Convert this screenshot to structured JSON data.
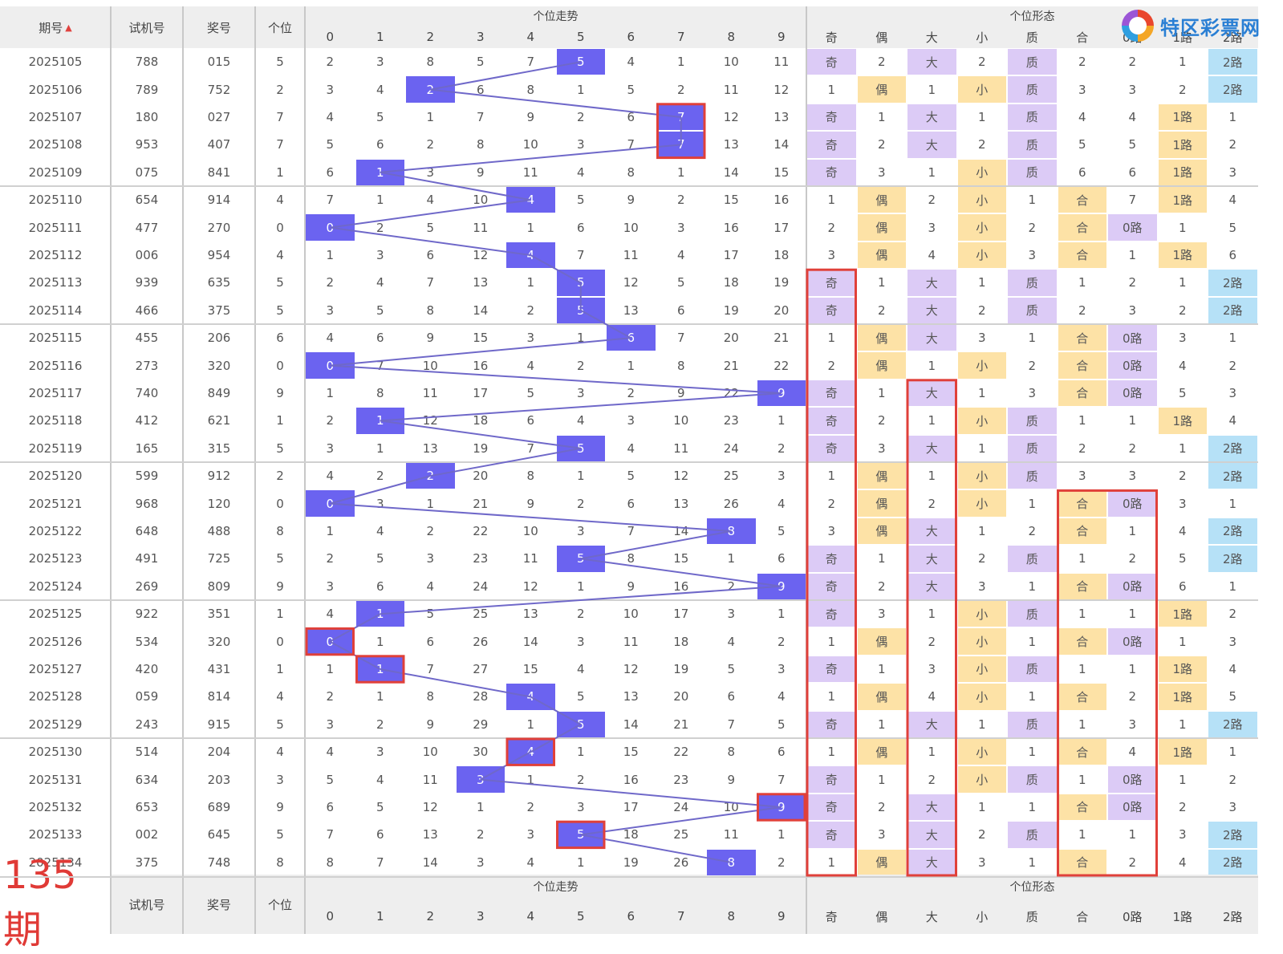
{
  "logo": {
    "text": "特区彩票网"
  },
  "header": {
    "issue": "期号",
    "trial": "试机号",
    "prize": "奖号",
    "digit": "个位",
    "trend_title": "个位走势",
    "form_title": "个位形态",
    "digits": [
      "0",
      "1",
      "2",
      "3",
      "4",
      "5",
      "6",
      "7",
      "8",
      "9"
    ],
    "forms": [
      "奇",
      "偶",
      "大",
      "小",
      "质",
      "合",
      "0路",
      "1路",
      "2路"
    ]
  },
  "footer": {
    "issue_big": "135期",
    "trial": "试机号",
    "prize": "奖号",
    "digit": "个位",
    "trend_title": "个位走势",
    "form_title": "个位形态",
    "digits": [
      "0",
      "1",
      "2",
      "3",
      "4",
      "5",
      "6",
      "7",
      "8",
      "9"
    ],
    "forms": [
      "奇",
      "偶",
      "大",
      "小",
      "质",
      "合",
      "0路",
      "1路",
      "2路"
    ]
  },
  "colors": {
    "hit": "#6b63f0",
    "odd": "#dccbf6",
    "even": "#fde2a6",
    "big": "#dccbf6",
    "small": "#fde2a6",
    "prime": "#dccbf6",
    "composite": "#fde2a6",
    "route0": "#dccbf6",
    "route1": "#fde2a6",
    "route2": "#b6e1f7",
    "highlight": "#e0403a"
  },
  "rows": [
    {
      "issue": "2025105",
      "trial": "788",
      "prize": "015",
      "digit": "5",
      "trend": [
        "2",
        "3",
        "8",
        "5",
        "7",
        "5",
        "4",
        "1",
        "10",
        "11"
      ],
      "forms": [
        "奇",
        "2",
        "大",
        "2",
        "质",
        "2",
        "2",
        "1",
        "2路"
      ]
    },
    {
      "issue": "2025106",
      "trial": "789",
      "prize": "752",
      "digit": "2",
      "trend": [
        "3",
        "4",
        "2",
        "6",
        "8",
        "1",
        "5",
        "2",
        "11",
        "12"
      ],
      "forms": [
        "1",
        "偶",
        "1",
        "小",
        "质",
        "3",
        "3",
        "2",
        "2路"
      ]
    },
    {
      "issue": "2025107",
      "trial": "180",
      "prize": "027",
      "digit": "7",
      "trend": [
        "4",
        "5",
        "1",
        "7",
        "9",
        "2",
        "6",
        "7",
        "12",
        "13"
      ],
      "forms": [
        "奇",
        "1",
        "大",
        "1",
        "质",
        "4",
        "4",
        "1路",
        "1"
      ]
    },
    {
      "issue": "2025108",
      "trial": "953",
      "prize": "407",
      "digit": "7",
      "trend": [
        "5",
        "6",
        "2",
        "8",
        "10",
        "3",
        "7",
        "7",
        "13",
        "14"
      ],
      "forms": [
        "奇",
        "2",
        "大",
        "2",
        "质",
        "5",
        "5",
        "1路",
        "2"
      ]
    },
    {
      "issue": "2025109",
      "trial": "075",
      "prize": "841",
      "digit": "1",
      "trend": [
        "6",
        "1",
        "3",
        "9",
        "11",
        "4",
        "8",
        "1",
        "14",
        "15"
      ],
      "forms": [
        "奇",
        "3",
        "1",
        "小",
        "质",
        "6",
        "6",
        "1路",
        "3"
      ]
    },
    {
      "issue": "2025110",
      "trial": "654",
      "prize": "914",
      "digit": "4",
      "trend": [
        "7",
        "1",
        "4",
        "10",
        "4",
        "5",
        "9",
        "2",
        "15",
        "16"
      ],
      "forms": [
        "1",
        "偶",
        "2",
        "小",
        "1",
        "合",
        "7",
        "1路",
        "4"
      ]
    },
    {
      "issue": "2025111",
      "trial": "477",
      "prize": "270",
      "digit": "0",
      "trend": [
        "0",
        "2",
        "5",
        "11",
        "1",
        "6",
        "10",
        "3",
        "16",
        "17"
      ],
      "forms": [
        "2",
        "偶",
        "3",
        "小",
        "2",
        "合",
        "0路",
        "1",
        "5"
      ]
    },
    {
      "issue": "2025112",
      "trial": "006",
      "prize": "954",
      "digit": "4",
      "trend": [
        "1",
        "3",
        "6",
        "12",
        "4",
        "7",
        "11",
        "4",
        "17",
        "18"
      ],
      "forms": [
        "3",
        "偶",
        "4",
        "小",
        "3",
        "合",
        "1",
        "1路",
        "6"
      ]
    },
    {
      "issue": "2025113",
      "trial": "939",
      "prize": "635",
      "digit": "5",
      "trend": [
        "2",
        "4",
        "7",
        "13",
        "1",
        "5",
        "12",
        "5",
        "18",
        "19"
      ],
      "forms": [
        "奇",
        "1",
        "大",
        "1",
        "质",
        "1",
        "2",
        "1",
        "2路"
      ]
    },
    {
      "issue": "2025114",
      "trial": "466",
      "prize": "375",
      "digit": "5",
      "trend": [
        "3",
        "5",
        "8",
        "14",
        "2",
        "5",
        "13",
        "6",
        "19",
        "20"
      ],
      "forms": [
        "奇",
        "2",
        "大",
        "2",
        "质",
        "2",
        "3",
        "2",
        "2路"
      ]
    },
    {
      "issue": "2025115",
      "trial": "455",
      "prize": "206",
      "digit": "6",
      "trend": [
        "4",
        "6",
        "9",
        "15",
        "3",
        "1",
        "6",
        "7",
        "20",
        "21"
      ],
      "forms": [
        "1",
        "偶",
        "大",
        "3",
        "1",
        "合",
        "0路",
        "3",
        "1"
      ]
    },
    {
      "issue": "2025116",
      "trial": "273",
      "prize": "320",
      "digit": "0",
      "trend": [
        "0",
        "7",
        "10",
        "16",
        "4",
        "2",
        "1",
        "8",
        "21",
        "22"
      ],
      "forms": [
        "2",
        "偶",
        "1",
        "小",
        "2",
        "合",
        "0路",
        "4",
        "2"
      ]
    },
    {
      "issue": "2025117",
      "trial": "740",
      "prize": "849",
      "digit": "9",
      "trend": [
        "1",
        "8",
        "11",
        "17",
        "5",
        "3",
        "2",
        "9",
        "22",
        "9"
      ],
      "forms": [
        "奇",
        "1",
        "大",
        "1",
        "3",
        "合",
        "0路",
        "5",
        "3"
      ]
    },
    {
      "issue": "2025118",
      "trial": "412",
      "prize": "621",
      "digit": "1",
      "trend": [
        "2",
        "1",
        "12",
        "18",
        "6",
        "4",
        "3",
        "10",
        "23",
        "1"
      ],
      "forms": [
        "奇",
        "2",
        "1",
        "小",
        "质",
        "1",
        "1",
        "1路",
        "4"
      ]
    },
    {
      "issue": "2025119",
      "trial": "165",
      "prize": "315",
      "digit": "5",
      "trend": [
        "3",
        "1",
        "13",
        "19",
        "7",
        "5",
        "4",
        "11",
        "24",
        "2"
      ],
      "forms": [
        "奇",
        "3",
        "大",
        "1",
        "质",
        "2",
        "2",
        "1",
        "2路"
      ]
    },
    {
      "issue": "2025120",
      "trial": "599",
      "prize": "912",
      "digit": "2",
      "trend": [
        "4",
        "2",
        "2",
        "20",
        "8",
        "1",
        "5",
        "12",
        "25",
        "3"
      ],
      "forms": [
        "1",
        "偶",
        "1",
        "小",
        "质",
        "3",
        "3",
        "2",
        "2路"
      ]
    },
    {
      "issue": "2025121",
      "trial": "968",
      "prize": "120",
      "digit": "0",
      "trend": [
        "0",
        "3",
        "1",
        "21",
        "9",
        "2",
        "6",
        "13",
        "26",
        "4"
      ],
      "forms": [
        "2",
        "偶",
        "2",
        "小",
        "1",
        "合",
        "0路",
        "3",
        "1"
      ]
    },
    {
      "issue": "2025122",
      "trial": "648",
      "prize": "488",
      "digit": "8",
      "trend": [
        "1",
        "4",
        "2",
        "22",
        "10",
        "3",
        "7",
        "14",
        "8",
        "5"
      ],
      "forms": [
        "3",
        "偶",
        "大",
        "1",
        "2",
        "合",
        "1",
        "4",
        "2路"
      ]
    },
    {
      "issue": "2025123",
      "trial": "491",
      "prize": "725",
      "digit": "5",
      "trend": [
        "2",
        "5",
        "3",
        "23",
        "11",
        "5",
        "8",
        "15",
        "1",
        "6"
      ],
      "forms": [
        "奇",
        "1",
        "大",
        "2",
        "质",
        "1",
        "2",
        "5",
        "2路"
      ]
    },
    {
      "issue": "2025124",
      "trial": "269",
      "prize": "809",
      "digit": "9",
      "trend": [
        "3",
        "6",
        "4",
        "24",
        "12",
        "1",
        "9",
        "16",
        "2",
        "9"
      ],
      "forms": [
        "奇",
        "2",
        "大",
        "3",
        "1",
        "合",
        "0路",
        "6",
        "1"
      ]
    },
    {
      "issue": "2025125",
      "trial": "922",
      "prize": "351",
      "digit": "1",
      "trend": [
        "4",
        "1",
        "5",
        "25",
        "13",
        "2",
        "10",
        "17",
        "3",
        "1"
      ],
      "forms": [
        "奇",
        "3",
        "1",
        "小",
        "质",
        "1",
        "1",
        "1路",
        "2"
      ]
    },
    {
      "issue": "2025126",
      "trial": "534",
      "prize": "320",
      "digit": "0",
      "trend": [
        "0",
        "1",
        "6",
        "26",
        "14",
        "3",
        "11",
        "18",
        "4",
        "2"
      ],
      "forms": [
        "1",
        "偶",
        "2",
        "小",
        "1",
        "合",
        "0路",
        "1",
        "3"
      ]
    },
    {
      "issue": "2025127",
      "trial": "420",
      "prize": "431",
      "digit": "1",
      "trend": [
        "1",
        "1",
        "7",
        "27",
        "15",
        "4",
        "12",
        "19",
        "5",
        "3"
      ],
      "forms": [
        "奇",
        "1",
        "3",
        "小",
        "质",
        "1",
        "1",
        "1路",
        "4"
      ]
    },
    {
      "issue": "2025128",
      "trial": "059",
      "prize": "814",
      "digit": "4",
      "trend": [
        "2",
        "1",
        "8",
        "28",
        "4",
        "5",
        "13",
        "20",
        "6",
        "4"
      ],
      "forms": [
        "1",
        "偶",
        "4",
        "小",
        "1",
        "合",
        "2",
        "1路",
        "5"
      ]
    },
    {
      "issue": "2025129",
      "trial": "243",
      "prize": "915",
      "digit": "5",
      "trend": [
        "3",
        "2",
        "9",
        "29",
        "1",
        "5",
        "14",
        "21",
        "7",
        "5"
      ],
      "forms": [
        "奇",
        "1",
        "大",
        "1",
        "质",
        "1",
        "3",
        "1",
        "2路"
      ]
    },
    {
      "issue": "2025130",
      "trial": "514",
      "prize": "204",
      "digit": "4",
      "trend": [
        "4",
        "3",
        "10",
        "30",
        "4",
        "1",
        "15",
        "22",
        "8",
        "6"
      ],
      "forms": [
        "1",
        "偶",
        "1",
        "小",
        "1",
        "合",
        "4",
        "1路",
        "1"
      ]
    },
    {
      "issue": "2025131",
      "trial": "634",
      "prize": "203",
      "digit": "3",
      "trend": [
        "5",
        "4",
        "11",
        "3",
        "1",
        "2",
        "16",
        "23",
        "9",
        "7"
      ],
      "forms": [
        "奇",
        "1",
        "2",
        "小",
        "质",
        "1",
        "0路",
        "1",
        "2"
      ]
    },
    {
      "issue": "2025132",
      "trial": "653",
      "prize": "689",
      "digit": "9",
      "trend": [
        "6",
        "5",
        "12",
        "1",
        "2",
        "3",
        "17",
        "24",
        "10",
        "9"
      ],
      "forms": [
        "奇",
        "2",
        "大",
        "1",
        "1",
        "合",
        "0路",
        "2",
        "3"
      ]
    },
    {
      "issue": "2025133",
      "trial": "002",
      "prize": "645",
      "digit": "5",
      "trend": [
        "7",
        "6",
        "13",
        "2",
        "3",
        "5",
        "18",
        "25",
        "11",
        "1"
      ],
      "forms": [
        "奇",
        "3",
        "大",
        "2",
        "质",
        "1",
        "1",
        "3",
        "2路"
      ]
    },
    {
      "issue": "2025134",
      "trial": "375",
      "prize": "748",
      "digit": "8",
      "trend": [
        "8",
        "7",
        "14",
        "3",
        "4",
        "1",
        "19",
        "26",
        "8",
        "2"
      ],
      "forms": [
        "1",
        "偶",
        "大",
        "3",
        "1",
        "合",
        "2",
        "4",
        "2路"
      ]
    }
  ]
}
